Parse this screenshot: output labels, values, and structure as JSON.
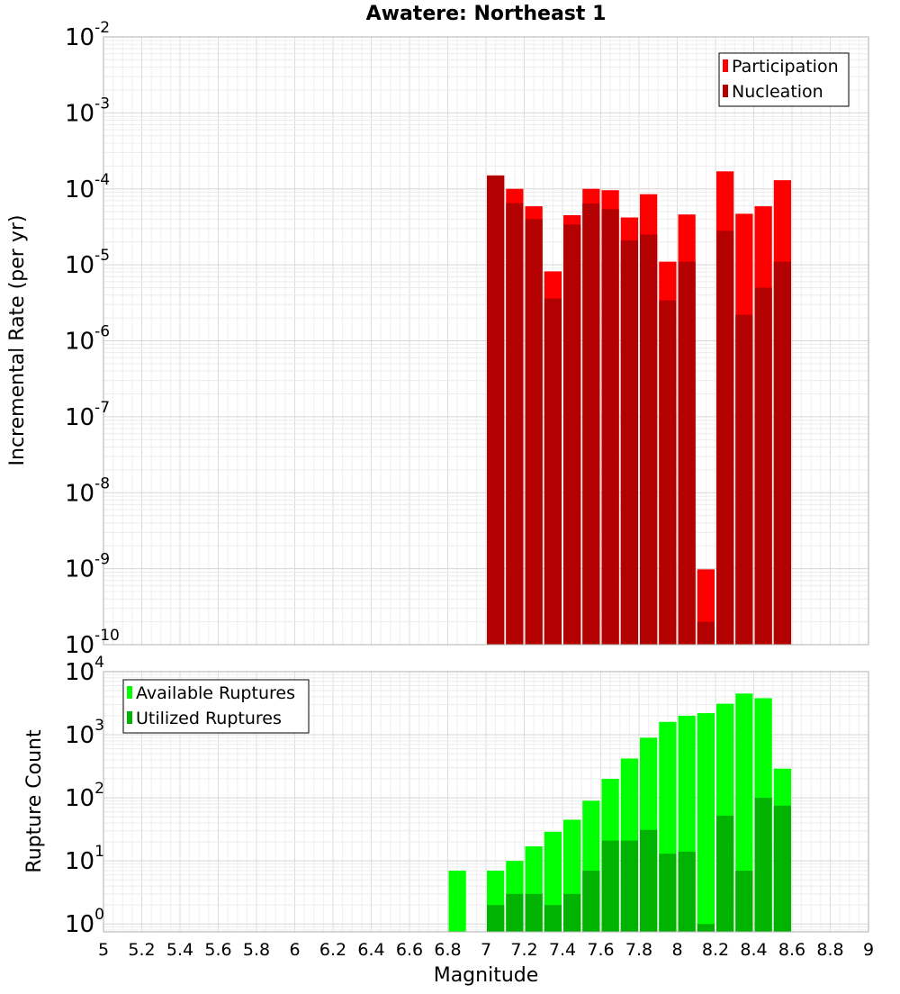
{
  "title": "Awatere: Northeast 1",
  "xlabel": "Magnitude",
  "chart_data": [
    {
      "type": "bar",
      "ylabel": "Incremental Rate (per yr)",
      "yscale": "log",
      "ylim": [
        1e-10,
        0.01
      ],
      "xlim": [
        5,
        9
      ],
      "legend": "top-right",
      "grid": true,
      "bar_width": 0.1,
      "y_ticks": [
        {
          "base": "10",
          "exp": "-10",
          "value": 1e-10
        },
        {
          "base": "10",
          "exp": "-9",
          "value": 1e-09
        },
        {
          "base": "10",
          "exp": "-8",
          "value": 1e-08
        },
        {
          "base": "10",
          "exp": "-7",
          "value": 1e-07
        },
        {
          "base": "10",
          "exp": "-6",
          "value": 1e-06
        },
        {
          "base": "10",
          "exp": "-5",
          "value": 1e-05
        },
        {
          "base": "10",
          "exp": "-4",
          "value": 0.0001
        },
        {
          "base": "10",
          "exp": "-3",
          "value": 0.001
        },
        {
          "base": "10",
          "exp": "-2",
          "value": 0.01
        }
      ],
      "series": [
        {
          "name": "Participation",
          "color": "#ff0000",
          "x": [
            7.05,
            7.15,
            7.25,
            7.35,
            7.45,
            7.55,
            7.65,
            7.75,
            7.85,
            7.95,
            8.05,
            8.15,
            8.25,
            8.35,
            8.45,
            8.55
          ],
          "values": [
            0.00015,
            0.0001,
            5.9e-05,
            8.2e-06,
            4.5e-05,
            0.0001,
            9.6e-05,
            4.2e-05,
            8.5e-05,
            1.1e-05,
            4.6e-05,
            9.8e-10,
            0.00017,
            4.7e-05,
            5.9e-05,
            0.00013
          ]
        },
        {
          "name": "Nucleation",
          "color": "#b30000",
          "x": [
            7.05,
            7.15,
            7.25,
            7.35,
            7.45,
            7.55,
            7.65,
            7.75,
            7.85,
            7.95,
            8.05,
            8.15,
            8.25,
            8.35,
            8.45,
            8.55
          ],
          "values": [
            0.00015,
            6.5e-05,
            4e-05,
            3.6e-06,
            3.4e-05,
            6.4e-05,
            5.4e-05,
            2.1e-05,
            2.5e-05,
            3.4e-06,
            1.1e-05,
            2e-10,
            2.8e-05,
            2.2e-06,
            5e-06,
            1.1e-05
          ]
        }
      ]
    },
    {
      "type": "bar",
      "ylabel": "Rupture Count",
      "yscale": "log",
      "ylim": [
        0.75,
        10000
      ],
      "xlim": [
        5,
        9
      ],
      "legend": "top-left",
      "grid": true,
      "bar_width": 0.1,
      "y_ticks": [
        {
          "base": "10",
          "exp": "0",
          "value": 1
        },
        {
          "base": "10",
          "exp": "1",
          "value": 10
        },
        {
          "base": "10",
          "exp": "2",
          "value": 100
        },
        {
          "base": "10",
          "exp": "3",
          "value": 1000
        },
        {
          "base": "10",
          "exp": "4",
          "value": 10000
        }
      ],
      "x_ticks": [
        "5",
        "5.2",
        "5.4",
        "5.6",
        "5.8",
        "6",
        "6.2",
        "6.4",
        "6.6",
        "6.8",
        "7",
        "7.2",
        "7.4",
        "7.6",
        "7.8",
        "8",
        "8.2",
        "8.4",
        "8.6",
        "8.8",
        "9"
      ],
      "series": [
        {
          "name": "Available Ruptures",
          "color": "#00ff00",
          "x": [
            6.85,
            7.05,
            7.15,
            7.25,
            7.35,
            7.45,
            7.55,
            7.65,
            7.75,
            7.85,
            7.95,
            8.05,
            8.15,
            8.25,
            8.35,
            8.45,
            8.55
          ],
          "values": [
            7,
            7,
            10,
            17,
            29,
            45,
            90,
            200,
            420,
            900,
            1600,
            2000,
            2200,
            3100,
            4500,
            3800,
            290
          ]
        },
        {
          "name": "Utilized Ruptures",
          "color": "#00b300",
          "x": [
            7.05,
            7.15,
            7.25,
            7.35,
            7.45,
            7.55,
            7.65,
            7.75,
            7.85,
            7.95,
            8.05,
            8.15,
            8.25,
            8.35,
            8.45,
            8.55
          ],
          "values": [
            2,
            3,
            3,
            2,
            3,
            7,
            21,
            21,
            31,
            13,
            14,
            1,
            52,
            7,
            100,
            75
          ]
        }
      ]
    }
  ]
}
